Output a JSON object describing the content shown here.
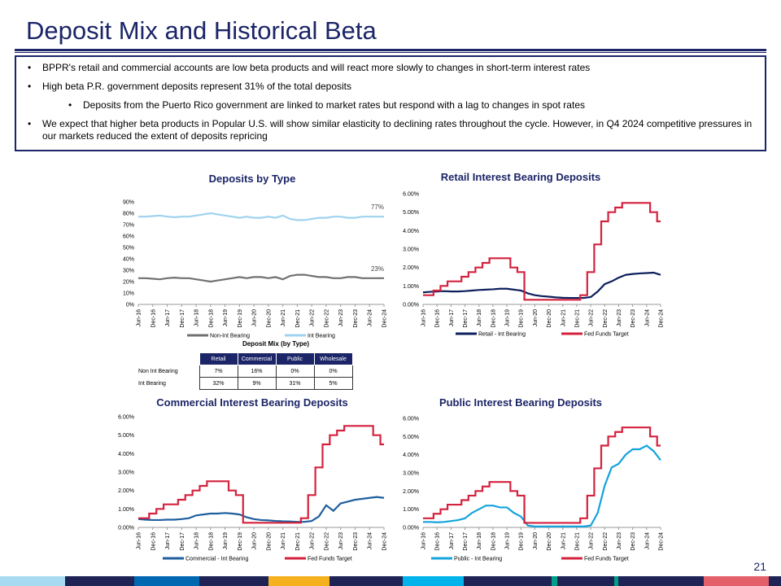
{
  "title": "Deposit Mix and Historical Beta",
  "bullets": [
    "BPPR's retail and commercial accounts are low beta products and will react more slowly to changes in short-term interest rates",
    "High beta P.R. government deposits represent 31% of the total deposits",
    "Deposits from the Puerto Rico government are linked to market rates but respond with a lag to changes in spot rates",
    "We expect that higher beta products in Popular U.S. will show similar elasticity to declining rates throughout the cycle. However, in Q4 2024 competitive pressures in our markets reduced the extent of deposits repricing"
  ],
  "page_number": "21",
  "colors": {
    "navy": "#1b2567",
    "light_blue": "#9fd3ee",
    "grey": "#707070",
    "red": "#d4213d",
    "retail": "#0d1f5c",
    "commercial": "#1f5f9e",
    "public": "#14a3dc"
  },
  "deposit_mix": {
    "title": "Deposit Mix (by Type)",
    "columns": [
      "Retail",
      "Commercial",
      "Public",
      "Wholesale"
    ],
    "rows": [
      {
        "label": "Non Int Bearing",
        "values": [
          "7%",
          "16%",
          "0%",
          "0%"
        ]
      },
      {
        "label": "Int Bearing",
        "values": [
          "32%",
          "9%",
          "31%",
          "5%"
        ]
      }
    ]
  },
  "chart_data": [
    {
      "id": "type",
      "type": "line",
      "title": "Deposits by Type",
      "ylim": [
        0,
        90
      ],
      "yticks": [
        0,
        10,
        20,
        30,
        40,
        50,
        60,
        70,
        80,
        90
      ],
      "ysuffix": "%",
      "ydec": 0,
      "x_ticks": [
        "Jun-16",
        "Dec-16",
        "Jun-17",
        "Dec-17",
        "Jun-18",
        "Dec-18",
        "Jun-19",
        "Dec-19",
        "Jun-20",
        "Dec-20",
        "Jun-21",
        "Dec-21",
        "Jun-22",
        "Dec-22",
        "Jun-23",
        "Dec-23",
        "Jun-24",
        "Dec-24"
      ],
      "series": [
        {
          "name": "Non-Int Bearing",
          "color": "#707070",
          "end_label": "23%",
          "values": [
            23,
            23,
            22.5,
            22,
            23,
            23.5,
            23,
            23,
            22,
            21,
            20,
            21,
            22,
            23,
            24,
            23,
            24,
            24,
            23,
            24,
            22,
            25,
            26,
            26,
            25,
            24,
            24,
            23,
            23,
            24,
            24,
            23,
            23,
            23,
            23
          ]
        },
        {
          "name": "Int Bearing",
          "color": "#9fd3ee",
          "end_label": "77%",
          "values": [
            77,
            77,
            77.5,
            78,
            77,
            76.5,
            77,
            77,
            78,
            79,
            80,
            79,
            78,
            77,
            76,
            77,
            76,
            76,
            77,
            76,
            78,
            75,
            74,
            74,
            75,
            76,
            76,
            77,
            77,
            76,
            76,
            77,
            77,
            77,
            77
          ]
        }
      ]
    },
    {
      "id": "retail",
      "type": "line",
      "title": "Retail Interest Bearing Deposits",
      "ylim": [
        0,
        6
      ],
      "yticks": [
        0,
        1,
        2,
        3,
        4,
        5,
        6
      ],
      "ysuffix": "%",
      "ydec": 2,
      "x_ticks": [
        "Jun-16",
        "Dec-16",
        "Jun-17",
        "Dec-17",
        "Jun-18",
        "Dec-18",
        "Jun-19",
        "Dec-19",
        "Jun-20",
        "Dec-20",
        "Jun-21",
        "Dec-21",
        "Jun-22",
        "Dec-22",
        "Jun-23",
        "Dec-23",
        "Jun-24",
        "Dec-24"
      ],
      "series": [
        {
          "name": "Retail - Int Bearing",
          "color": "#0d1f5c",
          "values": [
            0.65,
            0.68,
            0.7,
            0.72,
            0.7,
            0.7,
            0.72,
            0.75,
            0.78,
            0.8,
            0.82,
            0.85,
            0.85,
            0.8,
            0.75,
            0.6,
            0.5,
            0.45,
            0.42,
            0.38,
            0.36,
            0.35,
            0.35,
            0.35,
            0.4,
            0.7,
            1.1,
            1.25,
            1.45,
            1.6,
            1.65,
            1.68,
            1.7,
            1.72,
            1.6
          ]
        },
        {
          "name": "Fed Funds Target",
          "color": "#d4213d",
          "step": true,
          "values": [
            0.5,
            0.5,
            0.75,
            1.0,
            1.25,
            1.25,
            1.5,
            1.75,
            2.0,
            2.25,
            2.5,
            2.5,
            2.5,
            2.0,
            1.75,
            0.25,
            0.25,
            0.25,
            0.25,
            0.25,
            0.25,
            0.25,
            0.25,
            0.5,
            1.75,
            3.25,
            4.5,
            5.0,
            5.25,
            5.5,
            5.5,
            5.5,
            5.5,
            5.0,
            4.5
          ]
        }
      ]
    },
    {
      "id": "commercial",
      "type": "line",
      "title": "Commercial Interest Bearing Deposits",
      "ylim": [
        0,
        6
      ],
      "yticks": [
        0,
        1,
        2,
        3,
        4,
        5,
        6
      ],
      "ysuffix": "%",
      "ydec": 2,
      "x_ticks": [
        "Jun-16",
        "Dec-16",
        "Jun-17",
        "Dec-17",
        "Jun-18",
        "Dec-18",
        "Jun-19",
        "Dec-19",
        "Jun-20",
        "Dec-20",
        "Jun-21",
        "Dec-21",
        "Jun-22",
        "Dec-22",
        "Jun-23",
        "Dec-23",
        "Jun-24",
        "Dec-24"
      ],
      "series": [
        {
          "name": "Commercial - Int Bearing",
          "color": "#1f5f9e",
          "values": [
            0.45,
            0.42,
            0.4,
            0.4,
            0.42,
            0.42,
            0.45,
            0.5,
            0.65,
            0.7,
            0.75,
            0.75,
            0.78,
            0.75,
            0.7,
            0.55,
            0.45,
            0.4,
            0.38,
            0.35,
            0.33,
            0.32,
            0.3,
            0.3,
            0.35,
            0.6,
            1.2,
            0.9,
            1.3,
            1.4,
            1.5,
            1.55,
            1.6,
            1.65,
            1.6
          ]
        },
        {
          "name": "Fed Funds Target",
          "color": "#d4213d",
          "step": true,
          "values": [
            0.5,
            0.5,
            0.75,
            1.0,
            1.25,
            1.25,
            1.5,
            1.75,
            2.0,
            2.25,
            2.5,
            2.5,
            2.5,
            2.0,
            1.75,
            0.25,
            0.25,
            0.25,
            0.25,
            0.25,
            0.25,
            0.25,
            0.25,
            0.5,
            1.75,
            3.25,
            4.5,
            5.0,
            5.25,
            5.5,
            5.5,
            5.5,
            5.5,
            5.0,
            4.5
          ]
        }
      ]
    },
    {
      "id": "public",
      "type": "line",
      "title": "Public Interest Bearing Deposits",
      "ylim": [
        0,
        6
      ],
      "yticks": [
        0,
        1,
        2,
        3,
        4,
        5,
        6
      ],
      "ysuffix": "%",
      "ydec": 2,
      "x_ticks": [
        "Jun-16",
        "Dec-16",
        "Jun-17",
        "Dec-17",
        "Jun-18",
        "Dec-18",
        "Jun-19",
        "Dec-19",
        "Jun-20",
        "Dec-20",
        "Jun-21",
        "Dec-21",
        "Jun-22",
        "Dec-22",
        "Jun-23",
        "Dec-23",
        "Jun-24",
        "Dec-24"
      ],
      "series": [
        {
          "name": "Public - Int Bearing",
          "color": "#14a3dc",
          "values": [
            0.3,
            0.3,
            0.28,
            0.3,
            0.35,
            0.4,
            0.5,
            0.8,
            1.0,
            1.2,
            1.2,
            1.1,
            1.1,
            0.8,
            0.6,
            0.1,
            0.05,
            0.05,
            0.05,
            0.05,
            0.05,
            0.05,
            0.05,
            0.05,
            0.1,
            0.8,
            2.3,
            3.3,
            3.5,
            4.0,
            4.3,
            4.3,
            4.5,
            4.2,
            3.7
          ]
        },
        {
          "name": "Fed Funds Target",
          "color": "#d4213d",
          "step": true,
          "values": [
            0.5,
            0.5,
            0.75,
            1.0,
            1.25,
            1.25,
            1.5,
            1.75,
            2.0,
            2.25,
            2.5,
            2.5,
            2.5,
            2.0,
            1.75,
            0.25,
            0.25,
            0.25,
            0.25,
            0.25,
            0.25,
            0.25,
            0.25,
            0.5,
            1.75,
            3.25,
            4.5,
            5.0,
            5.25,
            5.5,
            5.5,
            5.5,
            5.5,
            5.0,
            4.5
          ]
        }
      ]
    }
  ]
}
